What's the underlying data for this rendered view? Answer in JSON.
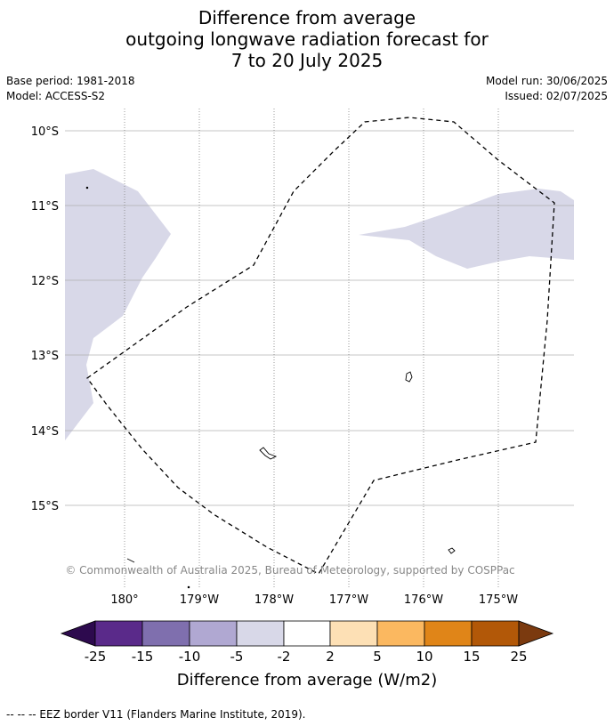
{
  "title": {
    "line1": "Difference from average",
    "line2": "outgoing longwave radiation forecast for",
    "line3": "7 to 20 July 2025"
  },
  "meta": {
    "base_period": "Base period: 1981-2018",
    "model": "Model: ACCESS-S2",
    "model_run": "Model run: 30/06/2025",
    "issued": "Issued: 02/07/2025"
  },
  "map": {
    "lat_labels": [
      "10°S",
      "11°S",
      "12°S",
      "13°S",
      "14°S",
      "15°S"
    ],
    "lon_labels": [
      "180°",
      "179°W",
      "178°W",
      "177°W",
      "176°W",
      "175°W"
    ],
    "copyright": "© Commonwealth of Australia 2025, Bureau of Meteorology, supported by COSPPac",
    "anomaly_fill_color": "#d8d8e8",
    "eez_color": "#000000"
  },
  "colorbar": {
    "tick_labels": [
      "-25",
      "-15",
      "-10",
      "-5",
      "-2",
      "2",
      "5",
      "10",
      "15",
      "25"
    ],
    "colors": [
      "#2d0a4e",
      "#5a2a8a",
      "#7f6fae",
      "#b0a8d2",
      "#d8d8e8",
      "#ffffff",
      "#fde0b5",
      "#fbb860",
      "#e08518",
      "#b25808",
      "#7b3a0f"
    ],
    "label": "Difference from average (W/m2)"
  },
  "footer": {
    "legend_text": "--  --  -- EEZ border V11 (Flanders Marine Institute, 2019)."
  }
}
